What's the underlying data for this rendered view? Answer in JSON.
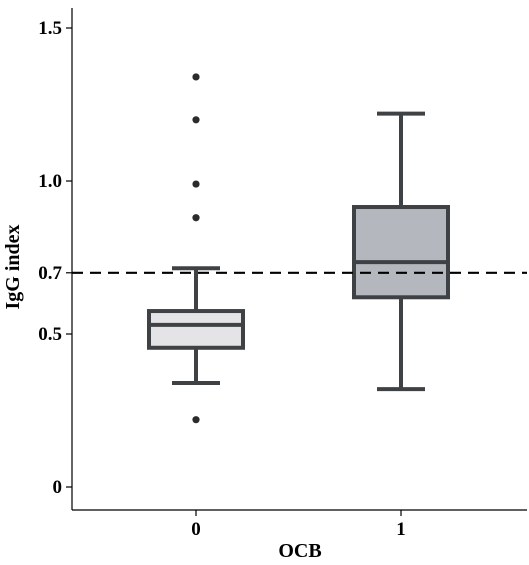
{
  "chart_data": {
    "type": "box",
    "xlabel": "OCB",
    "ylabel": "IgG index",
    "ylim": [
      0,
      1.5
    ],
    "y_ticks": [
      "0",
      "0.5",
      "0.7",
      "1.0",
      "1.5"
    ],
    "y_tick_values": [
      0,
      0.5,
      0.7,
      1.0,
      1.5
    ],
    "categories": [
      "0",
      "1"
    ],
    "reference_line": {
      "value": 0.7,
      "style": "dashed"
    },
    "boxes": [
      {
        "category": "0",
        "whisker_low": 0.34,
        "q1": 0.455,
        "median": 0.53,
        "q3": 0.575,
        "whisker_high": 0.715,
        "outliers": [
          0.22,
          0.88,
          0.99,
          1.2,
          1.34
        ],
        "fill": "#e4e4e6"
      },
      {
        "category": "1",
        "whisker_low": 0.32,
        "q1": 0.62,
        "median": 0.735,
        "q3": 0.915,
        "whisker_high": 1.22,
        "outliers": [],
        "fill": "#b4b7be"
      }
    ],
    "grid": false,
    "legend": "none"
  }
}
